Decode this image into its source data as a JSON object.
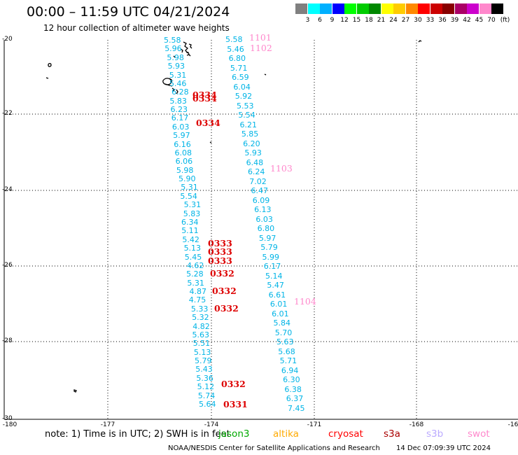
{
  "header": {
    "title": "00:00 – 11:59 UTC 04/21/2024",
    "subtitle": "12 hour collection of altimeter wave heights"
  },
  "color_scale": {
    "colors": [
      "#808080",
      "#00ffff",
      "#00b0ff",
      "#0000ff",
      "#00ff00",
      "#00cc00",
      "#008800",
      "#ffff00",
      "#ffcc00",
      "#ff8800",
      "#ff0000",
      "#cc0000",
      "#880000",
      "#aa0066",
      "#cc00cc",
      "#ff88cc",
      "#000000"
    ],
    "labels": [
      "3",
      "6",
      "9",
      "12",
      "15",
      "18",
      "21",
      "24",
      "27",
      "30",
      "33",
      "36",
      "39",
      "42",
      "45",
      "70",
      "(ft)"
    ]
  },
  "axes": {
    "lat_labels": [
      "-20",
      "-22",
      "-24",
      "-26",
      "-28",
      "-30"
    ],
    "lon_labels": [
      "-180",
      "-177",
      "-174",
      "-171",
      "-168",
      "-16"
    ]
  },
  "tracks": {
    "cyan_color": "#00b4e6",
    "track_a": [
      "5.58",
      "5.46",
      "6.80",
      "5.71",
      "6.59",
      "6.04",
      "5.92",
      "5.53",
      "5.54",
      "6.21",
      "5.85",
      "6.20",
      "5.93",
      "6.48",
      "6.24",
      "7.02",
      "6.47",
      "6.09",
      "6.13",
      "6.03",
      "6.80",
      "5.97",
      "5.79",
      "5.99",
      "6.17",
      "5.14",
      "5.47",
      "6.61",
      "6.01",
      "6.01",
      "5.84",
      "5.70",
      "5.63",
      "5.68",
      "5.71",
      "6.94",
      "6.30",
      "6.38",
      "6.37",
      "7.45"
    ],
    "track_b": [
      "5.58",
      "5.96",
      "5.98",
      "5.93",
      "5.31",
      "5.46",
      "6.28",
      "5.83",
      "6.23",
      "6.17",
      "6.03",
      "5.97",
      "6.16",
      "6.08",
      "6.06",
      "5.98",
      "5.90",
      "5.31",
      "5.54",
      "5.31",
      "5.83",
      "6.34",
      "5.11",
      "5.42",
      "5.13",
      "5.45",
      "4.62",
      "5.28",
      "5.31",
      "4.87",
      "4.75",
      "5.33",
      "5.32",
      "4.82",
      "5.63",
      "5.51",
      "5.13",
      "5.79",
      "5.43",
      "5.36",
      "5.12",
      "5.74",
      "5.64"
    ],
    "time_labels_b": [
      "0334",
      "0334",
      "0334",
      "0333",
      "0333",
      "0333",
      "0332",
      "0332",
      "0332",
      "0332",
      "0331"
    ],
    "time_labels_a": [
      "1101",
      "1102",
      "1103",
      "1104"
    ],
    "time_color_b": "#dd0000",
    "time_color_a": "#ff88cc"
  },
  "footer": {
    "note": "note:  1) Time is in UTC; 2) SWH is in feet",
    "legend": [
      {
        "label": "jason3",
        "color": "#00aa00"
      },
      {
        "label": "altika",
        "color": "#ffaa00"
      },
      {
        "label": "cryosat",
        "color": "#ff0000"
      },
      {
        "label": "s3a",
        "color": "#aa0000"
      },
      {
        "label": "s3b",
        "color": "#bbaaff"
      },
      {
        "label": "swot",
        "color": "#ff88cc"
      }
    ],
    "credit": "NOAA/NESDIS Center for Satellite Applications and Research",
    "timestamp": "14 Dec 07:09:39 UTC 2024"
  }
}
